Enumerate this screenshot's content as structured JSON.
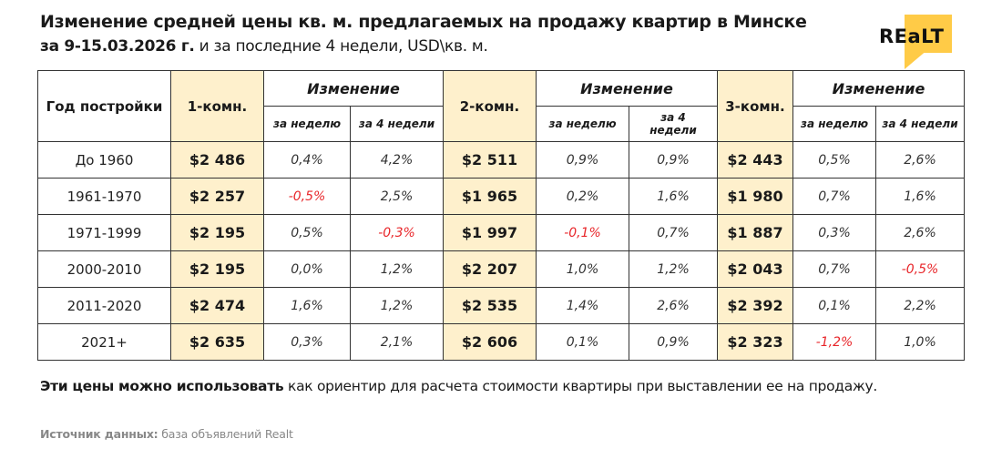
{
  "header": {
    "title": "Изменение средней цены кв. м. предлагаемых на продажу квартир в Минске",
    "subtitle_bold": "за 9-15.03.2026 г.",
    "subtitle_rest": " и за последние 4 недели, USD\\кв. м."
  },
  "logo": {
    "text": "REaLT",
    "accent_color": "#ffcb47"
  },
  "table": {
    "headers": {
      "year": "Год постройки",
      "room1": "1-комн.",
      "room2": "2-комн.",
      "room3": "3-комн.",
      "change": "Изменение",
      "week": "за неделю",
      "four_weeks": "за 4 недели"
    },
    "rows": [
      {
        "year": "До 1960",
        "p1": "$2 486",
        "w1": "0,4%",
        "m1": "4,2%",
        "p2": "$2 511",
        "w2": "0,9%",
        "m2": "0,9%",
        "p3": "$2 443",
        "w3": "0,5%",
        "m3": "2,6%"
      },
      {
        "year": "1961-1970",
        "p1": "$2 257",
        "w1": "-0,5%",
        "m1": "2,5%",
        "p2": "$1 965",
        "w2": "0,2%",
        "m2": "1,6%",
        "p3": "$1 980",
        "w3": "0,7%",
        "m3": "1,6%"
      },
      {
        "year": "1971-1999",
        "p1": "$2 195",
        "w1": "0,5%",
        "m1": "-0,3%",
        "p2": "$1 997",
        "w2": "-0,1%",
        "m2": "0,7%",
        "p3": "$1 887",
        "w3": "0,3%",
        "m3": "2,6%"
      },
      {
        "year": "2000-2010",
        "p1": "$2 195",
        "w1": "0,0%",
        "m1": "1,2%",
        "p2": "$2 207",
        "w2": "1,0%",
        "m2": "1,2%",
        "p3": "$2 043",
        "w3": "0,7%",
        "m3": "-0,5%"
      },
      {
        "year": "2011-2020",
        "p1": "$2 474",
        "w1": "1,6%",
        "m1": "1,2%",
        "p2": "$2 535",
        "w2": "1,4%",
        "m2": "2,6%",
        "p3": "$2 392",
        "w3": "0,1%",
        "m3": "2,2%"
      },
      {
        "year": "2021+",
        "p1": "$2 635",
        "w1": "0,3%",
        "m1": "2,1%",
        "p2": "$2 606",
        "w2": "0,1%",
        "m2": "0,9%",
        "p3": "$2 323",
        "w3": "-1,2%",
        "m3": "1,0%"
      }
    ],
    "colors": {
      "highlight": "#fef0cc",
      "negative": "#e8262a"
    }
  },
  "note": {
    "bold": "Эти цены можно использовать",
    "rest": " как ориентир для расчета стоимости квартиры при выставлении ее на продажу."
  },
  "source": {
    "label": "Источник данных:",
    "value": " база объявлений Realt"
  }
}
